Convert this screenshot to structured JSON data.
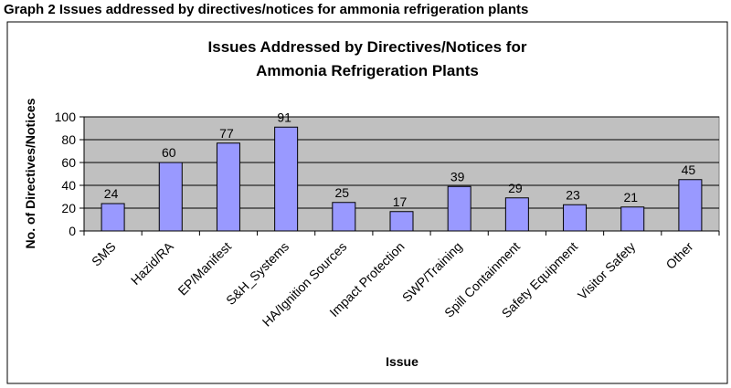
{
  "caption": "Graph 2 Issues addressed by directives/notices for ammonia refrigeration plants",
  "chart_data": {
    "type": "bar",
    "title_lines": [
      "Issues Addressed by Directives/Notices for",
      "Ammonia Refrigeration Plants"
    ],
    "xlabel": "Issue",
    "ylabel": "No. of Directives/Notices",
    "categories": [
      "SMS",
      "Hazid/RA",
      "EP/Manifest",
      "S&H_Systems",
      "HA/Ignition Sources",
      "Impact Protection",
      "SWP/Training",
      "Spill Containment",
      "Safety Equipment",
      "Visitor Safety",
      "Other"
    ],
    "values": [
      24,
      60,
      77,
      91,
      25,
      17,
      39,
      29,
      23,
      21,
      45
    ],
    "ylim": [
      0,
      100
    ],
    "yticks": [
      0,
      20,
      40,
      60,
      80,
      100
    ],
    "grid": true,
    "legend": "none",
    "colors": {
      "bar": "#9999ff",
      "bar_border": "#000000",
      "plot_bg": "#c0c0c0",
      "grid": "#000000"
    }
  }
}
